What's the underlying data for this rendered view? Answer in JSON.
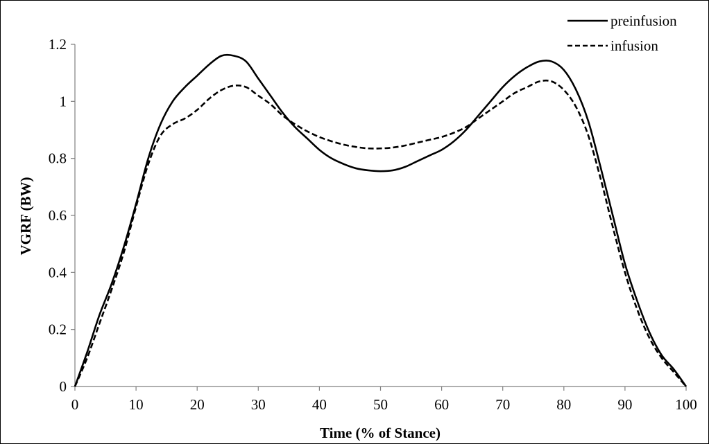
{
  "chart_data": {
    "type": "line",
    "title": "",
    "xlabel": "Time (% of Stance)",
    "ylabel": "VGRF (BW)",
    "xlim": [
      0,
      100
    ],
    "ylim": [
      0,
      1.2
    ],
    "x_ticks": [
      0,
      10,
      20,
      30,
      40,
      50,
      60,
      70,
      80,
      90,
      100
    ],
    "y_ticks": [
      0,
      0.2,
      0.4,
      0.6,
      0.8,
      1,
      1.2
    ],
    "y_tick_labels": [
      "0",
      "0.2",
      "0.4",
      "0.6",
      "0.8",
      "1",
      "1.2"
    ],
    "grid": false,
    "legend_position": "top-right",
    "series": [
      {
        "name": "preinfusion",
        "line_style": "solid",
        "color": "#000000",
        "x": [
          0,
          2,
          4,
          6,
          8,
          10,
          12,
          14,
          16,
          18,
          20,
          22,
          24,
          26,
          28,
          30,
          32,
          34,
          36,
          38,
          40,
          42,
          44,
          46,
          48,
          50,
          52,
          54,
          56,
          58,
          60,
          62,
          64,
          66,
          68,
          70,
          72,
          74,
          76,
          78,
          80,
          82,
          84,
          86,
          88,
          90,
          92,
          94,
          96,
          98,
          100
        ],
        "values": [
          0,
          0.12,
          0.25,
          0.36,
          0.49,
          0.64,
          0.8,
          0.92,
          1.0,
          1.05,
          1.09,
          1.13,
          1.16,
          1.16,
          1.14,
          1.08,
          1.02,
          0.96,
          0.91,
          0.87,
          0.83,
          0.8,
          0.78,
          0.765,
          0.758,
          0.755,
          0.758,
          0.77,
          0.79,
          0.81,
          0.83,
          0.86,
          0.9,
          0.95,
          1.0,
          1.05,
          1.09,
          1.12,
          1.14,
          1.14,
          1.11,
          1.04,
          0.93,
          0.77,
          0.6,
          0.43,
          0.3,
          0.19,
          0.11,
          0.06,
          0
        ]
      },
      {
        "name": "infusion",
        "line_style": "dashed",
        "color": "#000000",
        "x": [
          0,
          2,
          4,
          6,
          8,
          10,
          12,
          14,
          16,
          18,
          20,
          22,
          24,
          26,
          28,
          30,
          32,
          34,
          36,
          38,
          40,
          42,
          44,
          46,
          48,
          50,
          52,
          54,
          56,
          58,
          60,
          62,
          64,
          66,
          68,
          70,
          72,
          74,
          76,
          78,
          80,
          82,
          84,
          86,
          88,
          90,
          92,
          94,
          96,
          98,
          100
        ],
        "values": [
          0,
          0.1,
          0.22,
          0.34,
          0.47,
          0.63,
          0.78,
          0.88,
          0.92,
          0.94,
          0.97,
          1.01,
          1.04,
          1.055,
          1.05,
          1.02,
          0.99,
          0.95,
          0.92,
          0.895,
          0.875,
          0.86,
          0.848,
          0.84,
          0.835,
          0.835,
          0.838,
          0.845,
          0.855,
          0.865,
          0.875,
          0.89,
          0.91,
          0.94,
          0.97,
          1.0,
          1.03,
          1.05,
          1.07,
          1.07,
          1.04,
          0.98,
          0.88,
          0.73,
          0.56,
          0.4,
          0.27,
          0.17,
          0.1,
          0.05,
          0
        ]
      }
    ]
  }
}
